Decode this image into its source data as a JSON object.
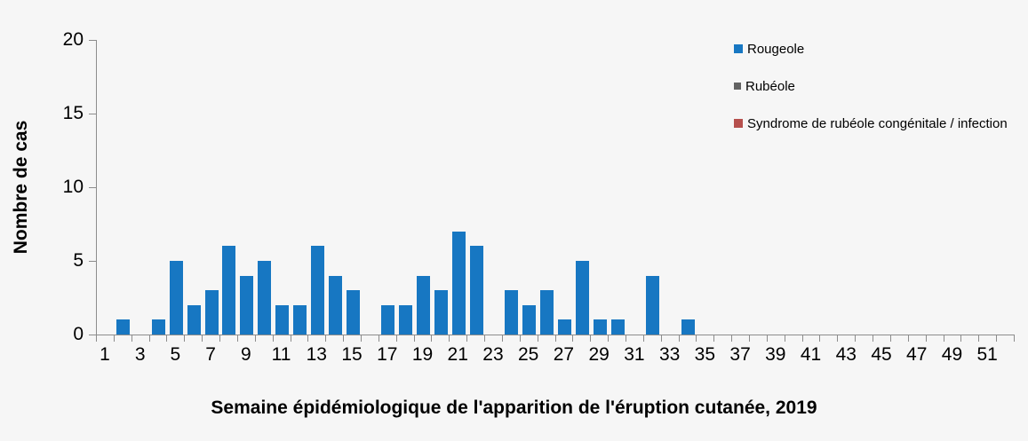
{
  "figure": {
    "background_color": "#f6f6f6",
    "axis_color": "#8c8c8c",
    "text_color": "#000000"
  },
  "chart_data": {
    "type": "bar",
    "title": "",
    "xlabel": "Semaine épidémiologique de l'apparition de l'éruption cutanée, 2019",
    "ylabel": "Nombre de cas",
    "categories": [
      1,
      2,
      3,
      4,
      5,
      6,
      7,
      8,
      9,
      10,
      11,
      12,
      13,
      14,
      15,
      16,
      17,
      18,
      19,
      20,
      21,
      22,
      23,
      24,
      25,
      26,
      27,
      28,
      29,
      30,
      31,
      32,
      33,
      34,
      35,
      36,
      37,
      38,
      39,
      40,
      41,
      42,
      43,
      44,
      45,
      46,
      47,
      48,
      49,
      50,
      51,
      52
    ],
    "x_tick_labels": [
      "1",
      "3",
      "5",
      "7",
      "9",
      "11",
      "13",
      "15",
      "17",
      "19",
      "21",
      "23",
      "25",
      "27",
      "29",
      "31",
      "33",
      "35",
      "37",
      "39",
      "41",
      "43",
      "45",
      "47",
      "49",
      "51"
    ],
    "y_ticks": [
      0,
      5,
      10,
      15,
      20
    ],
    "ylim": [
      0,
      20
    ],
    "grid": false,
    "legend_position": "top-right",
    "series": [
      {
        "name": "Rougeole",
        "color": "#1777C2",
        "values": [
          0,
          1,
          0,
          1,
          5,
          2,
          3,
          6,
          4,
          5,
          2,
          2,
          6,
          4,
          3,
          0,
          2,
          2,
          4,
          3,
          7,
          6,
          0,
          3,
          2,
          3,
          1,
          5,
          1,
          1,
          0,
          4,
          0,
          1,
          0,
          0,
          0,
          0,
          0,
          0,
          0,
          0,
          0,
          0,
          0,
          0,
          0,
          0,
          0,
          0,
          0,
          0
        ]
      },
      {
        "name": "Rubéole",
        "color": "#636363",
        "values": [
          0,
          0,
          0,
          0,
          0,
          0,
          0,
          0,
          0,
          0,
          0,
          0,
          0,
          0,
          0,
          0,
          0,
          0,
          0,
          0,
          0,
          0,
          0,
          0,
          0,
          0,
          0,
          0,
          0,
          0,
          0,
          0,
          0,
          0,
          0,
          0,
          0,
          0,
          0,
          0,
          0,
          0,
          0,
          0,
          0,
          0,
          0,
          0,
          0,
          0,
          0,
          0
        ]
      },
      {
        "name": "Syndrome de rubéole congénitale / infection",
        "color": "#B6504D",
        "values": [
          0,
          0,
          0,
          0,
          0,
          0,
          0,
          0,
          0,
          0,
          0,
          0,
          0,
          0,
          0,
          0,
          0,
          0,
          0,
          0,
          0,
          0,
          0,
          0,
          0,
          0,
          0,
          0,
          0,
          0,
          0,
          0,
          0,
          0,
          0,
          0,
          0,
          0,
          0,
          0,
          0,
          0,
          0,
          0,
          0,
          0,
          0,
          0,
          0,
          0,
          0,
          0
        ]
      }
    ]
  },
  "legend": {
    "items": [
      {
        "label": "Rougeole",
        "color": "#1777C2"
      },
      {
        "label": "Rubéole",
        "color": "#636363"
      },
      {
        "label": "Syndrome de rubéole congénitale / infection",
        "color": "#B6504D"
      }
    ]
  }
}
